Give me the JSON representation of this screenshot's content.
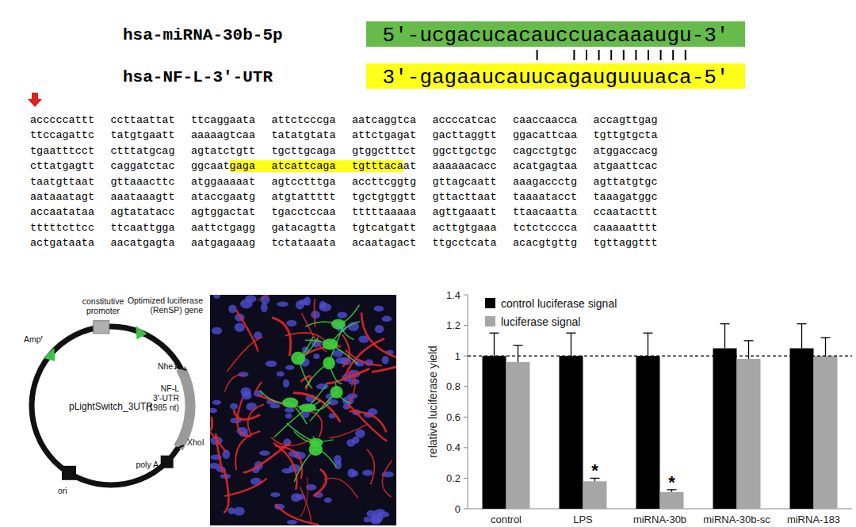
{
  "alignment": {
    "mirna_name": "hsa-miRNA-30b-5p",
    "mirna_seq": "5'-ucgacucacauccuacaaaugu-3'",
    "target_name": "hsa-NF-L-3'-UTR",
    "target_seq": "3'-gagaaucauucagauguuuaca-5'"
  },
  "sequence": {
    "lines": [
      [
        "acccccattt",
        "ccttaattat",
        "ttcaggaata",
        "attctcccga",
        "aatcaggtca",
        "accccatcac",
        "caaccaacca",
        "accagttgag"
      ],
      [
        "ttccagattc",
        "tatgtgaatt",
        "aaaaagtcaa",
        "tatatgtata",
        "attctgagat",
        "gacttaggtt",
        "ggacattcaa",
        "tgttgtgcta"
      ],
      [
        "tgaatttcct",
        "ctttatgcag",
        "agtatctgtt",
        "tgcttgcaga",
        "gtggctttct",
        "ggcttgctgc",
        "cagcctgtgc",
        "atggaccacg"
      ],
      [
        "cttatgagtt",
        "caggatctac",
        "ggcaatgaga",
        "atcattcaga",
        "tgtttacaat",
        "aaaaaacacc",
        "acatgagtaa",
        "atgaattcac"
      ],
      [
        "taatgttaat",
        "gttaaacttc",
        "atggaaaaat",
        "agtcctttga",
        "accttcggtg",
        "gttagcaatt",
        "aaagaccctg",
        "agttatgtgc"
      ],
      [
        "aataaatagt",
        "aaataaagtt",
        "ataccgaatg",
        "atgtattttt",
        "tgctgtggtt",
        "gttacttaat",
        "taaaatacct",
        "taaagatggc"
      ],
      [
        "accaatataa",
        "agtatatacc",
        "agtggactat",
        "tgacctccaa",
        "tttttaaaaa",
        "agttgaaatt",
        "ttaacaatta",
        "ccaatacttt"
      ],
      [
        "tttttcttcc",
        "ttcaattgga",
        "aattctgagg",
        "gatacagtta",
        "tgtcatgatt",
        "acttgtgaaa",
        "tctctcccca",
        "caaaaatttt"
      ],
      [
        "actgataata",
        "aacatgagta",
        "aatgagaaag",
        "tctataaata",
        "acaatagact",
        "ttgcctcata",
        "acacgtgttg",
        "tgttaggttt"
      ]
    ]
  },
  "plasmid": {
    "name": "pLightSwitch_3UTR",
    "promoter": [
      "constitutive",
      "promoter"
    ],
    "luciferase": [
      "Optimized luciferase",
      "(RenSP) gene"
    ],
    "amp": "Amp",
    "amp_sup": "r",
    "insert": [
      "NF-L",
      "3'-UTR",
      "(1985 nt)"
    ],
    "site_5": "Nhe1",
    "site_3": "XhoI",
    "polya": "poly A",
    "ori": "ori"
  },
  "chart_data": {
    "type": "bar",
    "categories": [
      "control",
      "LPS",
      "miRNA-30b",
      "miRNA-30b-sc",
      "miRNA-183"
    ],
    "series": [
      {
        "name": "control luciferase signal",
        "color": "#000000",
        "values": [
          1,
          1,
          1,
          1.05,
          1.05
        ],
        "errors": [
          0.15,
          0.15,
          0.15,
          0.16,
          0.16
        ]
      },
      {
        "name": "luciferase signal",
        "color": "#a6a6a6",
        "values": [
          0.96,
          0.18,
          0.11,
          0.98,
          1
        ],
        "errors": [
          0.11,
          0.02,
          0.015,
          0.12,
          0.12
        ],
        "significance": [
          null,
          "*",
          "*",
          null,
          null
        ]
      }
    ],
    "y_label": "relative luciferase yield",
    "ylim": [
      0,
      1.4
    ],
    "yticks": [
      0,
      0.2,
      0.4,
      0.6,
      0.8,
      1,
      1.2,
      1.4
    ],
    "hline": 1,
    "legend": "top-left",
    "grid": false
  }
}
